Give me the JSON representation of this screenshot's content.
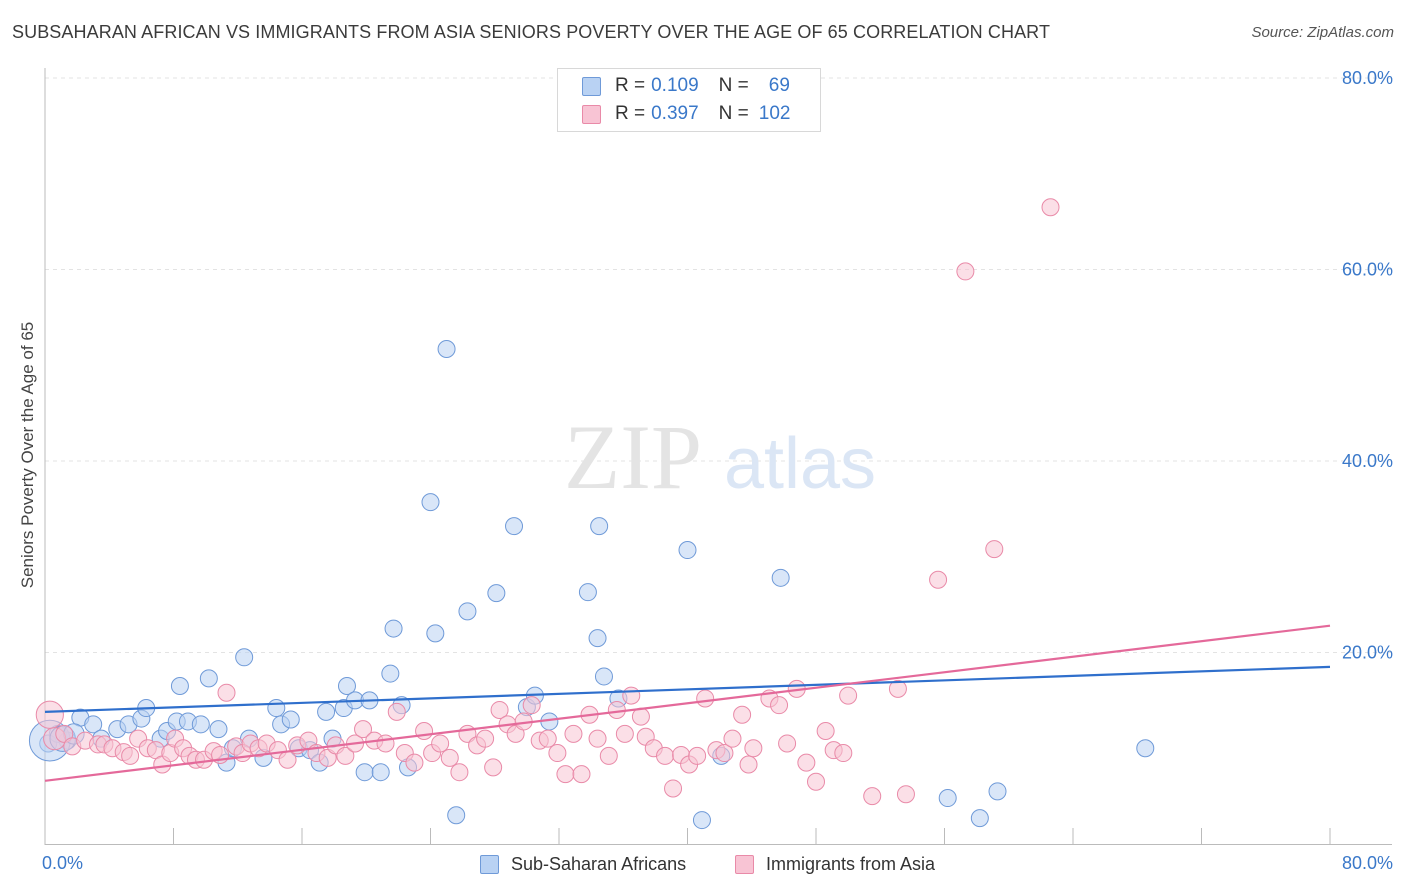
{
  "header": {
    "title": "SUBSAHARAN AFRICAN VS IMMIGRANTS FROM ASIA SENIORS POVERTY OVER THE AGE OF 65 CORRELATION CHART",
    "source": "Source: ZipAtlas.com"
  },
  "watermark": {
    "zip": "ZIP",
    "atlas": "atlas"
  },
  "legend": {
    "series1": {
      "r_label": "R =",
      "r_value": "0.109",
      "n_label": "N =",
      "n_value": "69"
    },
    "series2": {
      "r_label": "R =",
      "r_value": "0.397",
      "n_label": "N =",
      "n_value": "102"
    }
  },
  "bottom_legend": {
    "series1": "Sub-Saharan Africans",
    "series2": "Immigrants from Asia"
  },
  "colors": {
    "blue_fill": "#b9d2f3",
    "blue_stroke": "#6f9ad8",
    "blue_line": "#2f6fcc",
    "pink_fill": "#f8c4d4",
    "pink_stroke": "#e98aa8",
    "pink_line": "#e4699a",
    "tick_text": "#3a78c9",
    "grid": "#e3e3e3"
  },
  "chart_data": {
    "type": "scatter",
    "title": "SUBSAHARAN AFRICAN VS IMMIGRANTS FROM ASIA SENIORS POVERTY OVER THE AGE OF 65 CORRELATION CHART",
    "xlabel": "",
    "ylabel": "Seniors Poverty Over the Age of 65",
    "xlim": [
      0,
      80
    ],
    "ylim": [
      0,
      80
    ],
    "x_tick_labels": [
      "0.0%",
      "80.0%"
    ],
    "y_tick_labels": [
      "20.0%",
      "40.0%",
      "60.0%",
      "80.0%"
    ],
    "y_ticks": [
      20,
      40,
      60,
      80
    ],
    "series": [
      {
        "name": "Sub-Saharan Africans",
        "color": "blue",
        "trend": [
          [
            0,
            13.8
          ],
          [
            80,
            18.5
          ]
        ],
        "points": [
          [
            0.2,
            10.5,
            1
          ],
          [
            0.8,
            11.5,
            1
          ],
          [
            1.4,
            10.8,
            1
          ],
          [
            2.2,
            13.2,
            1
          ],
          [
            3.0,
            12.5,
            1
          ],
          [
            3.5,
            11.0,
            1
          ],
          [
            4.5,
            12.0,
            1
          ],
          [
            5.2,
            12.5,
            1
          ],
          [
            6.0,
            13.1,
            1
          ],
          [
            6.3,
            14.2,
            1
          ],
          [
            7.2,
            11.0,
            1
          ],
          [
            7.6,
            11.8,
            1
          ],
          [
            8.2,
            12.8,
            1
          ],
          [
            8.4,
            16.5,
            1
          ],
          [
            8.9,
            12.8,
            1
          ],
          [
            9.7,
            12.5,
            1
          ],
          [
            10.2,
            17.3,
            1
          ],
          [
            10.8,
            12.0,
            1
          ],
          [
            11.3,
            8.5,
            1
          ],
          [
            11.7,
            10.0,
            1
          ],
          [
            12.4,
            19.5,
            1
          ],
          [
            12.7,
            11.0,
            1
          ],
          [
            13.6,
            9.0,
            1
          ],
          [
            14.4,
            14.2,
            1
          ],
          [
            14.7,
            12.5,
            1
          ],
          [
            15.3,
            13.0,
            1
          ],
          [
            15.8,
            10.0,
            1
          ],
          [
            16.5,
            9.8,
            1
          ],
          [
            17.1,
            8.5,
            1
          ],
          [
            17.5,
            13.8,
            1
          ],
          [
            17.9,
            11.0,
            1
          ],
          [
            18.6,
            14.2,
            1
          ],
          [
            18.8,
            16.5,
            1
          ],
          [
            19.3,
            15.0,
            1
          ],
          [
            19.9,
            7.5,
            1
          ],
          [
            20.2,
            15.0,
            1
          ],
          [
            20.9,
            7.5,
            1
          ],
          [
            21.5,
            17.8,
            1
          ],
          [
            21.7,
            22.5,
            1
          ],
          [
            22.2,
            14.5,
            1
          ],
          [
            22.6,
            8.0,
            1
          ],
          [
            24.0,
            35.7,
            1
          ],
          [
            24.3,
            22.0,
            1
          ],
          [
            25.0,
            51.7,
            1
          ],
          [
            25.6,
            3.0,
            1
          ],
          [
            26.3,
            24.3,
            1
          ],
          [
            28.1,
            26.2,
            1
          ],
          [
            29.2,
            33.2,
            1
          ],
          [
            30.0,
            14.3,
            1
          ],
          [
            30.5,
            15.5,
            1
          ],
          [
            31.4,
            12.8,
            1
          ],
          [
            33.8,
            26.3,
            1
          ],
          [
            34.4,
            21.5,
            1
          ],
          [
            34.8,
            17.5,
            1
          ],
          [
            34.5,
            33.2,
            1
          ],
          [
            35.7,
            15.2,
            1
          ],
          [
            40.0,
            30.7,
            1
          ],
          [
            40.9,
            2.5,
            1
          ],
          [
            42.1,
            9.2,
            1
          ],
          [
            45.8,
            27.8,
            1
          ],
          [
            56.2,
            4.8,
            1
          ],
          [
            58.2,
            2.7,
            1
          ],
          [
            59.3,
            5.5,
            1
          ],
          [
            68.5,
            10.0,
            1
          ],
          [
            0.3,
            10.8,
            2.4
          ],
          [
            1.1,
            11.0,
            1.5
          ],
          [
            1.8,
            11.5,
            1.2
          ]
        ]
      },
      {
        "name": "Immigrants from Asia",
        "color": "pink",
        "trend": [
          [
            0,
            6.6
          ],
          [
            80,
            22.8
          ]
        ],
        "points": [
          [
            0.3,
            13.5,
            1.6
          ],
          [
            0.6,
            11.0,
            1.3
          ],
          [
            1.2,
            11.5,
            1
          ],
          [
            1.7,
            10.2,
            1
          ],
          [
            2.5,
            10.8,
            1
          ],
          [
            3.3,
            10.4,
            1
          ],
          [
            3.7,
            10.4,
            1
          ],
          [
            4.2,
            10.0,
            1
          ],
          [
            4.9,
            9.6,
            1
          ],
          [
            5.3,
            9.2,
            1
          ],
          [
            5.8,
            11.0,
            1
          ],
          [
            6.4,
            10.0,
            1
          ],
          [
            6.9,
            9.8,
            1
          ],
          [
            7.3,
            8.3,
            1
          ],
          [
            7.8,
            9.5,
            1
          ],
          [
            8.1,
            11.0,
            1
          ],
          [
            8.6,
            10.0,
            1
          ],
          [
            9.0,
            9.2,
            1
          ],
          [
            9.4,
            8.8,
            1
          ],
          [
            9.9,
            8.8,
            1
          ],
          [
            10.5,
            9.7,
            1
          ],
          [
            10.9,
            9.3,
            1
          ],
          [
            11.3,
            15.8,
            1
          ],
          [
            11.9,
            10.2,
            1
          ],
          [
            12.3,
            9.5,
            1
          ],
          [
            12.8,
            10.5,
            1
          ],
          [
            13.3,
            10.0,
            1
          ],
          [
            13.8,
            10.5,
            1
          ],
          [
            14.5,
            9.8,
            1
          ],
          [
            15.1,
            8.8,
            1
          ],
          [
            15.7,
            10.3,
            1
          ],
          [
            16.4,
            10.8,
            1
          ],
          [
            16.9,
            9.5,
            1
          ],
          [
            17.6,
            9.0,
            1
          ],
          [
            18.1,
            10.3,
            1
          ],
          [
            18.7,
            9.2,
            1
          ],
          [
            19.3,
            10.5,
            1
          ],
          [
            19.8,
            12.0,
            1
          ],
          [
            20.5,
            10.8,
            1
          ],
          [
            21.2,
            10.5,
            1
          ],
          [
            21.9,
            13.8,
            1
          ],
          [
            22.4,
            9.5,
            1
          ],
          [
            23.0,
            8.5,
            1
          ],
          [
            23.6,
            11.8,
            1
          ],
          [
            24.1,
            9.5,
            1
          ],
          [
            24.6,
            10.5,
            1
          ],
          [
            25.2,
            9.0,
            1
          ],
          [
            25.8,
            7.5,
            1
          ],
          [
            26.3,
            11.5,
            1
          ],
          [
            26.9,
            10.3,
            1
          ],
          [
            27.4,
            11.0,
            1
          ],
          [
            27.9,
            8.0,
            1
          ],
          [
            28.3,
            14.0,
            1
          ],
          [
            28.8,
            12.5,
            1
          ],
          [
            29.3,
            11.5,
            1
          ],
          [
            29.8,
            12.8,
            1
          ],
          [
            30.3,
            14.5,
            1
          ],
          [
            30.8,
            10.8,
            1
          ],
          [
            31.3,
            11.0,
            1
          ],
          [
            31.9,
            9.5,
            1
          ],
          [
            32.4,
            7.3,
            1
          ],
          [
            32.9,
            11.5,
            1
          ],
          [
            33.4,
            7.3,
            1
          ],
          [
            33.9,
            13.5,
            1
          ],
          [
            34.4,
            11.0,
            1
          ],
          [
            35.1,
            9.2,
            1
          ],
          [
            35.6,
            14.0,
            1
          ],
          [
            36.1,
            11.5,
            1
          ],
          [
            36.5,
            15.5,
            1
          ],
          [
            37.1,
            13.3,
            1
          ],
          [
            37.4,
            11.2,
            1
          ],
          [
            37.9,
            10.0,
            1
          ],
          [
            38.6,
            9.2,
            1
          ],
          [
            39.1,
            5.8,
            1
          ],
          [
            39.6,
            9.3,
            1
          ],
          [
            40.1,
            8.3,
            1
          ],
          [
            40.6,
            9.2,
            1
          ],
          [
            41.1,
            15.2,
            1
          ],
          [
            41.8,
            9.8,
            1
          ],
          [
            42.3,
            9.5,
            1
          ],
          [
            42.8,
            11.0,
            1
          ],
          [
            43.4,
            13.5,
            1
          ],
          [
            43.8,
            8.3,
            1
          ],
          [
            44.1,
            10.0,
            1
          ],
          [
            45.1,
            15.2,
            1
          ],
          [
            45.7,
            14.5,
            1
          ],
          [
            46.2,
            10.5,
            1
          ],
          [
            46.8,
            16.2,
            1
          ],
          [
            47.4,
            8.5,
            1
          ],
          [
            48.0,
            6.5,
            1
          ],
          [
            48.6,
            11.8,
            1
          ],
          [
            49.1,
            9.8,
            1
          ],
          [
            50.0,
            15.5,
            1
          ],
          [
            51.5,
            5.0,
            1
          ],
          [
            53.1,
            16.2,
            1
          ],
          [
            53.6,
            5.2,
            1
          ],
          [
            55.6,
            27.6,
            1
          ],
          [
            57.3,
            59.8,
            1
          ],
          [
            59.1,
            30.8,
            1
          ],
          [
            62.6,
            66.5,
            1
          ],
          [
            49.7,
            9.5,
            1
          ]
        ]
      }
    ]
  }
}
